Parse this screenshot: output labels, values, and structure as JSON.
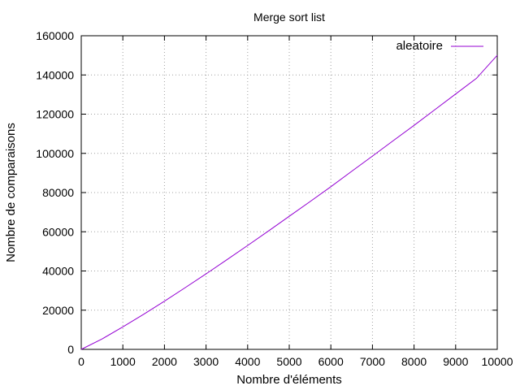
{
  "chart_data": {
    "type": "line",
    "title": "Merge sort list",
    "xlabel": "Nombre d'éléments",
    "ylabel": "Nombre de comparaisons",
    "xlim": [
      0,
      10000
    ],
    "ylim": [
      0,
      160000
    ],
    "x_ticks": [
      0,
      1000,
      2000,
      3000,
      4000,
      5000,
      6000,
      7000,
      8000,
      9000,
      10000
    ],
    "y_ticks": [
      0,
      20000,
      40000,
      60000,
      80000,
      100000,
      120000,
      140000,
      160000
    ],
    "grid": true,
    "legend_position": "top-right",
    "series": [
      {
        "name": "aleatoire",
        "color": "#9400d3",
        "x": [
          0,
          500,
          1000,
          1500,
          2000,
          2500,
          3000,
          3500,
          4000,
          4500,
          5000,
          5500,
          6000,
          6500,
          7000,
          7500,
          8000,
          8500,
          9000,
          9500,
          10000
        ],
        "y": [
          0,
          5300,
          11500,
          17900,
          24600,
          31500,
          38500,
          45700,
          53000,
          60400,
          67900,
          75400,
          83000,
          90800,
          98600,
          106500,
          114300,
          122300,
          130300,
          138300,
          150000
        ]
      }
    ]
  }
}
